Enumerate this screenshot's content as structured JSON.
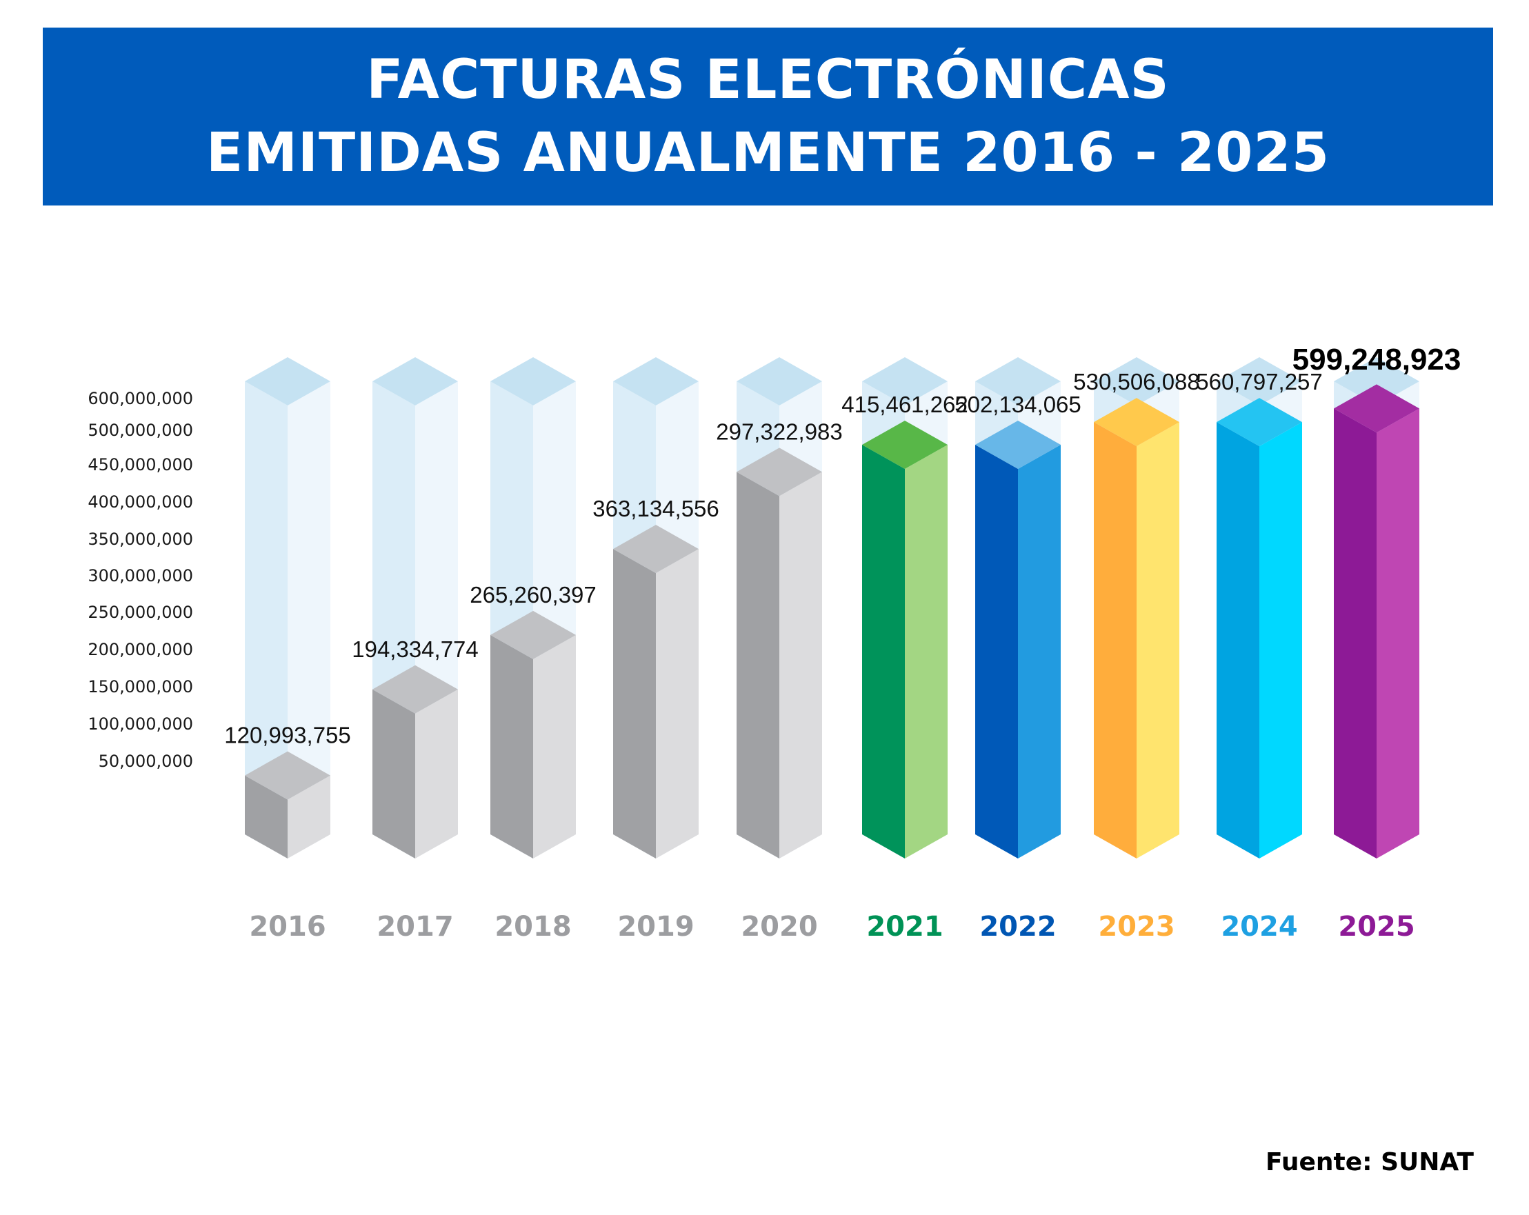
{
  "chart_data": {
    "type": "bar",
    "title": "FACTURAS ELECTRÓNICAS EMITIDAS ANUALMENTE 2016 - 2025",
    "title_lines": [
      "FACTURAS ELECTRÓNICAS",
      "EMITIDAS ANUALMENTE 2016 - 2025"
    ],
    "xlabel": "",
    "ylabel": "",
    "ylim": [
      0,
      600000000
    ],
    "grid": false,
    "y_ticks": [
      {
        "value": 600000000,
        "label": "600,000,000"
      },
      {
        "value": 500000000,
        "label": "500,000,000"
      },
      {
        "value": 450000000,
        "label": "450,000,000"
      },
      {
        "value": 400000000,
        "label": "400,000,000"
      },
      {
        "value": 350000000,
        "label": "350,000,000"
      },
      {
        "value": 300000000,
        "label": "300,000,000"
      },
      {
        "value": 250000000,
        "label": "250,000,000"
      },
      {
        "value": 200000000,
        "label": "200,000,000"
      },
      {
        "value": 150000000,
        "label": "150,000,000"
      },
      {
        "value": 100000000,
        "label": "100,000,000"
      },
      {
        "value": 50000000,
        "label": "50,000,000"
      }
    ],
    "categories": [
      "2016",
      "2017",
      "2018",
      "2019",
      "2020",
      "2021",
      "2022",
      "2023",
      "2024",
      "2025"
    ],
    "values": [
      120993755,
      194334774,
      265260397,
      363134556,
      297322983,
      415461262,
      502134065,
      530506088,
      560797257,
      599248923
    ],
    "value_labels": [
      "120,993,755",
      "194,334,774",
      "265,260,397",
      "363,134,556",
      "297,322,983",
      "415,461,262",
      "502,134,065",
      "530,506,088",
      "560,797,257",
      "599,248,923"
    ],
    "fill_ratio": [
      0.13,
      0.32,
      0.44,
      0.63,
      0.8,
      0.86,
      0.86,
      0.91,
      0.91,
      0.94
    ],
    "highlight_index": 9,
    "bar_colors": [
      {
        "left": "#a0a1a4",
        "right": "#dcdcde",
        "top": "#c0c1c4",
        "label": "#9c9da0"
      },
      {
        "left": "#a0a1a4",
        "right": "#dcdcde",
        "top": "#c0c1c4",
        "label": "#9c9da0"
      },
      {
        "left": "#a0a1a4",
        "right": "#dcdcde",
        "top": "#c0c1c4",
        "label": "#9c9da0"
      },
      {
        "left": "#a0a1a4",
        "right": "#dcdcde",
        "top": "#c0c1c4",
        "label": "#9c9da0"
      },
      {
        "left": "#a0a1a4",
        "right": "#dcdcde",
        "top": "#c0c1c4",
        "label": "#9c9da0"
      },
      {
        "left": "#00935a",
        "right": "#a3d683",
        "top": "#58b748",
        "label": "#009256"
      },
      {
        "left": "#0059b8",
        "right": "#229be0",
        "top": "#67b7e8",
        "label": "#0056b3"
      },
      {
        "left": "#ffad3c",
        "right": "#ffe46e",
        "top": "#ffc94c",
        "label": "#ffae3a"
      },
      {
        "left": "#00a4e1",
        "right": "#00d8ff",
        "top": "#24c4f2",
        "label": "#1ea0e2"
      },
      {
        "left": "#8d1a96",
        "right": "#bf46b3",
        "top": "#a32da2",
        "label": "#8d1a96"
      }
    ],
    "ghost_colors": {
      "left": "#dbedf8",
      "right": "#eef6fc",
      "top": "#c5e2f2"
    }
  },
  "source": "Fuente: SUNAT"
}
